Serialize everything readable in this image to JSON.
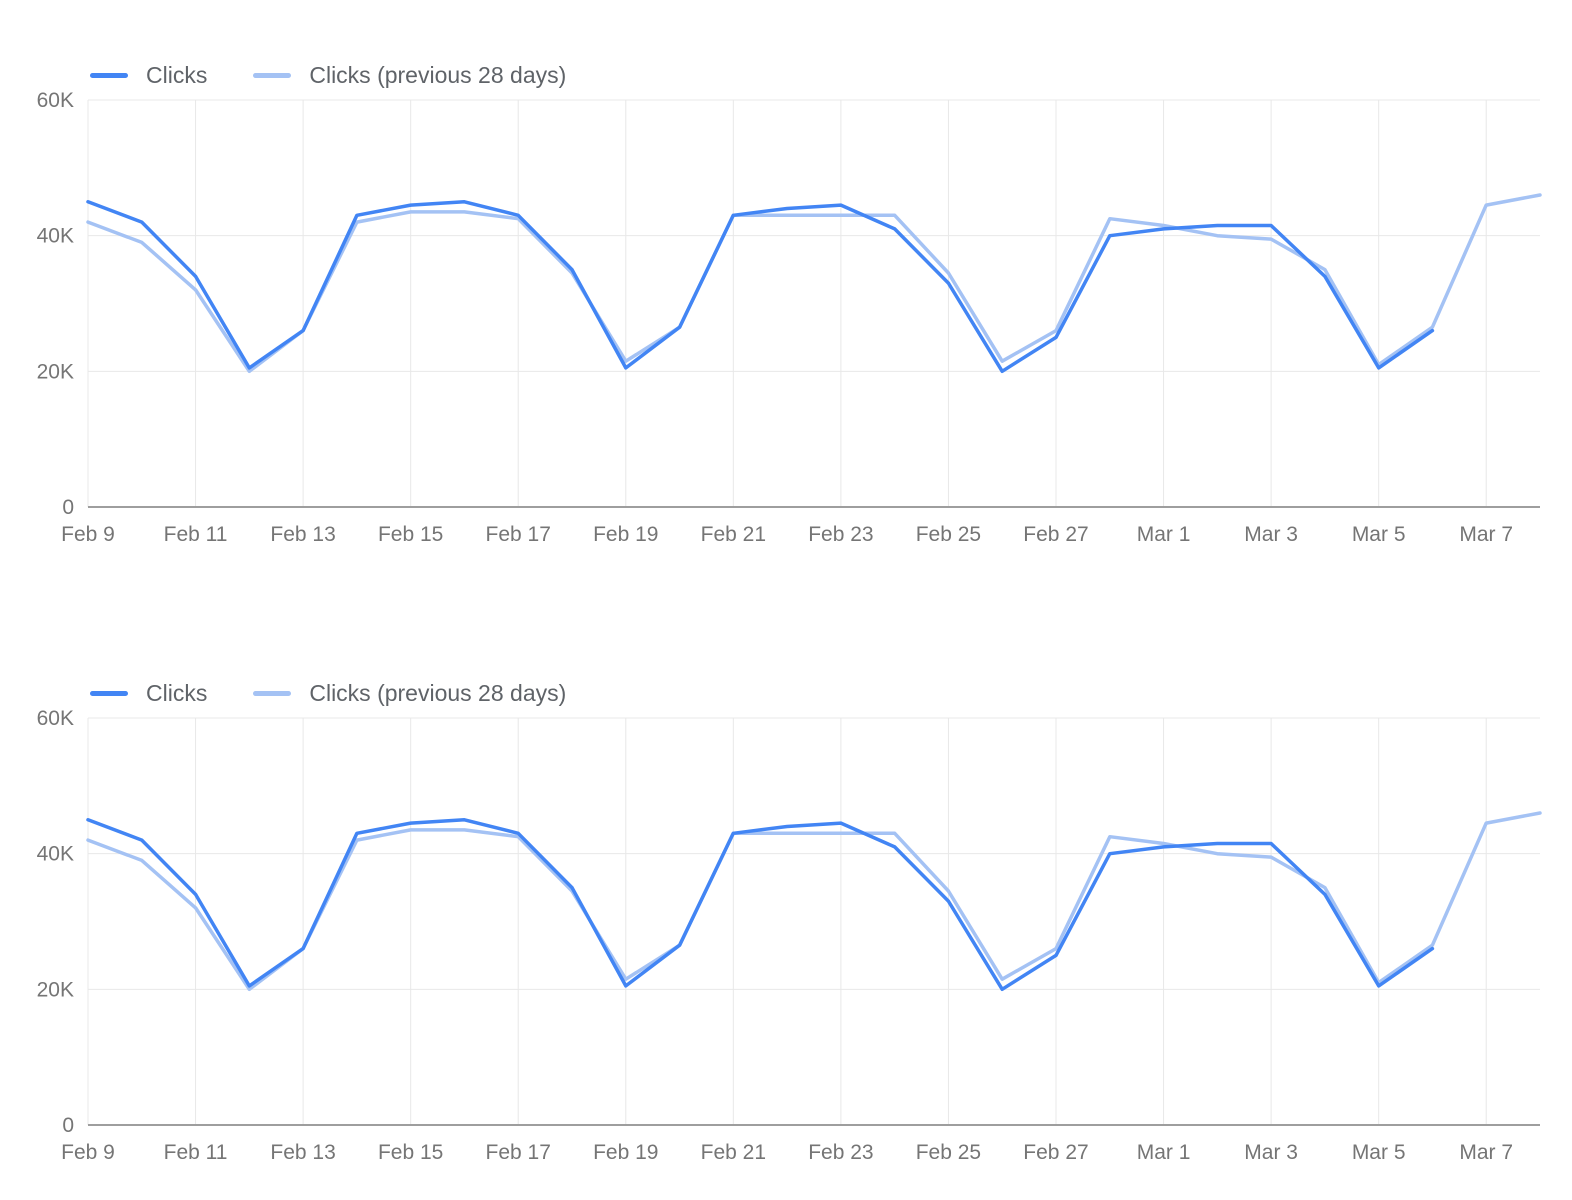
{
  "page": {
    "background_color": "#ffffff"
  },
  "chart_data": [
    {
      "type": "line",
      "title": "",
      "legend_position": "top-left",
      "grid": true,
      "grid_color": "#e8e8e8",
      "axis_line_color": "#9e9e9e",
      "label_color": "#757575",
      "ylim": [
        0,
        60000
      ],
      "y_tick_values": [
        0,
        20000,
        40000,
        60000
      ],
      "y_tick_labels": [
        "0",
        "20K",
        "40K",
        "60K"
      ],
      "x_tick_days": [
        0,
        2,
        4,
        6,
        8,
        10,
        12,
        14,
        16,
        18,
        20,
        22,
        24,
        26
      ],
      "x_tick_labels": [
        "Feb 9",
        "Feb 11",
        "Feb 13",
        "Feb 15",
        "Feb 17",
        "Feb 19",
        "Feb 21",
        "Feb 23",
        "Feb 25",
        "Feb 27",
        "Mar 1",
        "Mar 3",
        "Mar 5",
        "Mar 7"
      ],
      "x_days_total": 27,
      "dates": [
        "Feb 9",
        "Feb 10",
        "Feb 11",
        "Feb 12",
        "Feb 13",
        "Feb 14",
        "Feb 15",
        "Feb 16",
        "Feb 17",
        "Feb 18",
        "Feb 19",
        "Feb 20",
        "Feb 21",
        "Feb 22",
        "Feb 23",
        "Feb 24",
        "Feb 25",
        "Feb 26",
        "Feb 27",
        "Feb 28",
        "Mar 1",
        "Mar 2",
        "Mar 3",
        "Mar 4",
        "Mar 5",
        "Mar 6",
        "Mar 7",
        "Mar 8"
      ],
      "series": [
        {
          "name": "Clicks",
          "color": "#4285f4",
          "start_day": 0,
          "values": [
            45000,
            42000,
            34000,
            20500,
            26000,
            43000,
            44500,
            45000,
            43000,
            35000,
            20500,
            26500,
            43000,
            44000,
            44500,
            41000,
            33000,
            20000,
            25000,
            40000,
            41000,
            41500,
            41500,
            34000,
            20500,
            26000
          ]
        },
        {
          "name": "Clicks (previous 28 days)",
          "color": "#a4c2f4",
          "start_day": 0,
          "values": [
            42000,
            39000,
            32000,
            20000,
            26000,
            42000,
            43500,
            43500,
            42500,
            34500,
            21500,
            26500,
            43000,
            43000,
            43000,
            43000,
            34500,
            21500,
            26000,
            42500,
            41500,
            40000,
            39500,
            35000,
            21000,
            26500,
            44500,
            46000
          ]
        }
      ]
    },
    {
      "type": "line",
      "title": "",
      "legend_position": "top-left",
      "grid": true,
      "grid_color": "#e8e8e8",
      "axis_line_color": "#9e9e9e",
      "label_color": "#757575",
      "ylim": [
        0,
        60000
      ],
      "y_tick_values": [
        0,
        20000,
        40000,
        60000
      ],
      "y_tick_labels": [
        "0",
        "20K",
        "40K",
        "60K"
      ],
      "x_tick_days": [
        0,
        2,
        4,
        6,
        8,
        10,
        12,
        14,
        16,
        18,
        20,
        22,
        24,
        26
      ],
      "x_tick_labels": [
        "Feb 9",
        "Feb 11",
        "Feb 13",
        "Feb 15",
        "Feb 17",
        "Feb 19",
        "Feb 21",
        "Feb 23",
        "Feb 25",
        "Feb 27",
        "Mar 1",
        "Mar 3",
        "Mar 5",
        "Mar 7"
      ],
      "x_days_total": 27,
      "dates": [
        "Feb 9",
        "Feb 10",
        "Feb 11",
        "Feb 12",
        "Feb 13",
        "Feb 14",
        "Feb 15",
        "Feb 16",
        "Feb 17",
        "Feb 18",
        "Feb 19",
        "Feb 20",
        "Feb 21",
        "Feb 22",
        "Feb 23",
        "Feb 24",
        "Feb 25",
        "Feb 26",
        "Feb 27",
        "Feb 28",
        "Mar 1",
        "Mar 2",
        "Mar 3",
        "Mar 4",
        "Mar 5",
        "Mar 6",
        "Mar 7",
        "Mar 8"
      ],
      "series": [
        {
          "name": "Clicks",
          "color": "#4285f4",
          "start_day": 0,
          "values": [
            45000,
            42000,
            34000,
            20500,
            26000,
            43000,
            44500,
            45000,
            43000,
            35000,
            20500,
            26500,
            43000,
            44000,
            44500,
            41000,
            33000,
            20000,
            25000,
            40000,
            41000,
            41500,
            41500,
            34000,
            20500,
            26000
          ]
        },
        {
          "name": "Clicks (previous 28 days)",
          "color": "#a4c2f4",
          "start_day": 0,
          "values": [
            42000,
            39000,
            32000,
            20000,
            26000,
            42000,
            43500,
            43500,
            42500,
            34500,
            21500,
            26500,
            43000,
            43000,
            43000,
            43000,
            34500,
            21500,
            26000,
            42500,
            41500,
            40000,
            39500,
            35000,
            21000,
            26500,
            44500,
            46000
          ]
        }
      ]
    }
  ]
}
